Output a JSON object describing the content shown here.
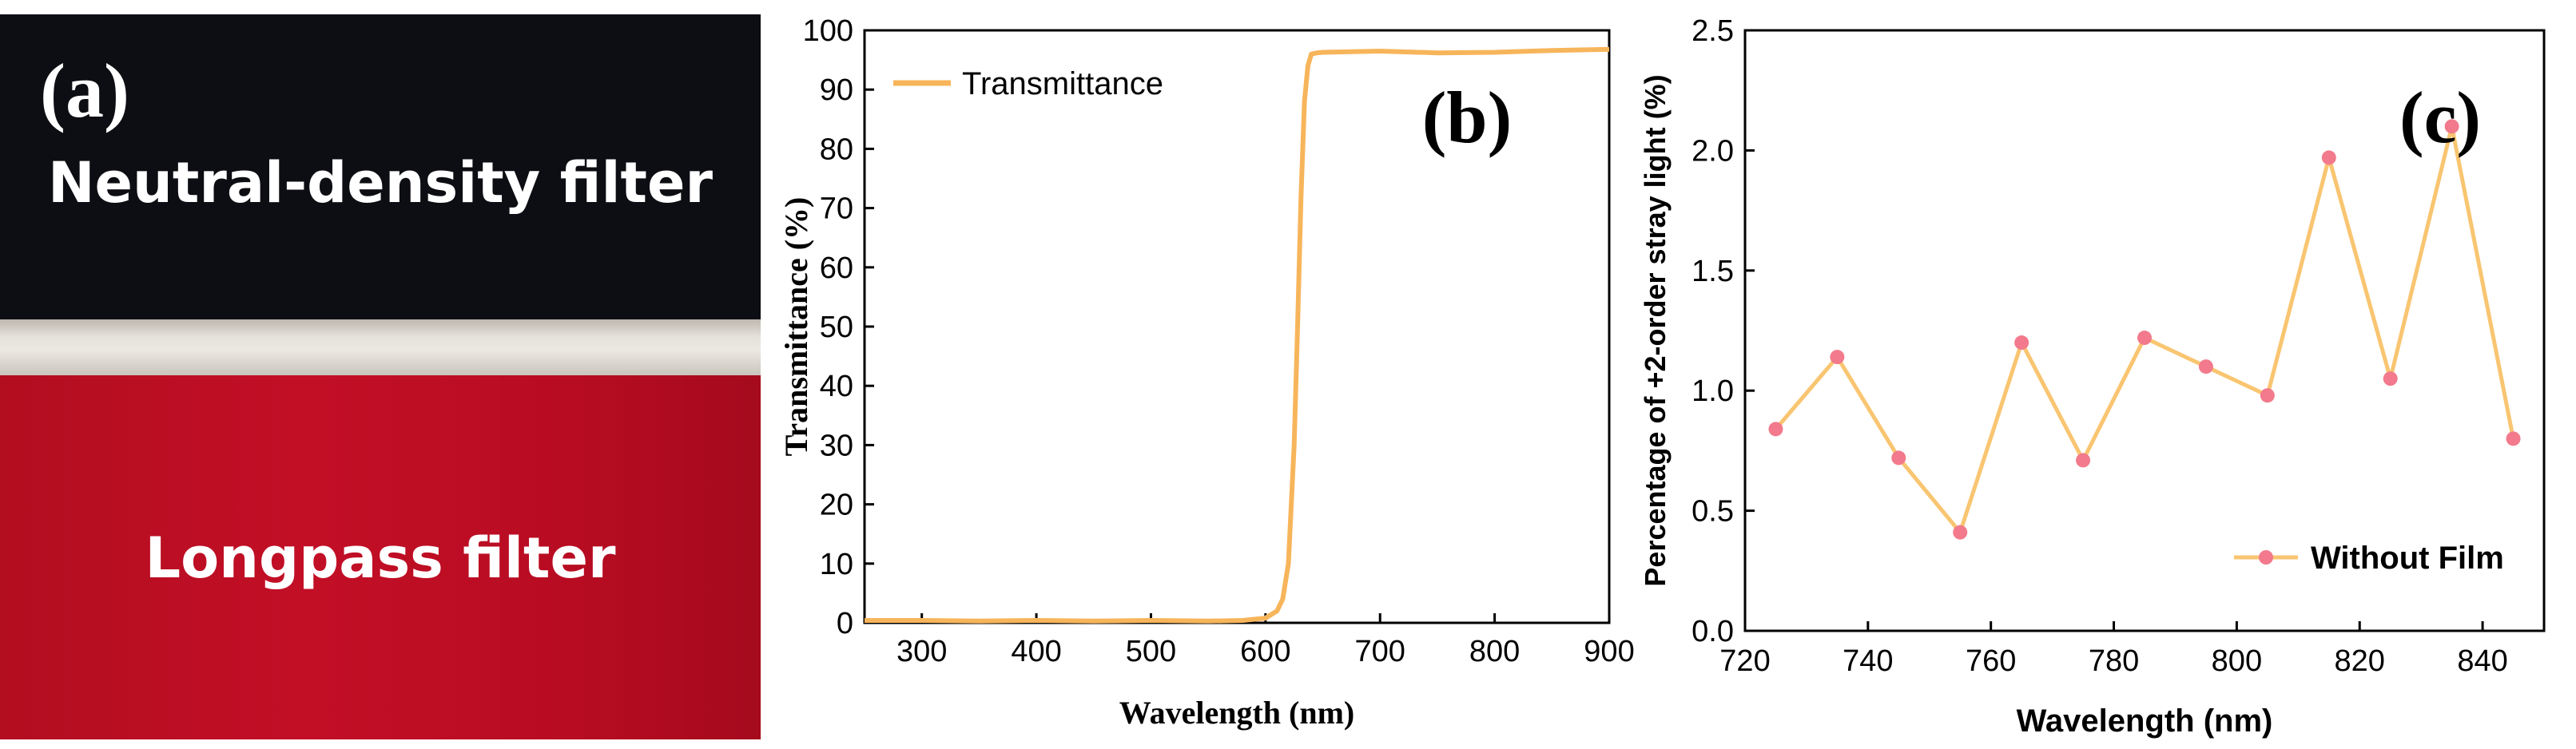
{
  "panel_a": {
    "tag": "(a)",
    "top_label": "Neutral-density filter",
    "bottom_label": "Longpass filter"
  },
  "chart_data": [
    {
      "type": "line",
      "panel_tag": "(b)",
      "xlabel": "Wavelength (nm)",
      "ylabel": "Transmittance (%)",
      "xlim": [
        250,
        900
      ],
      "ylim": [
        0,
        100
      ],
      "xticks": [
        300,
        400,
        500,
        600,
        700,
        800,
        900
      ],
      "yticks": [
        0,
        10,
        20,
        30,
        40,
        50,
        60,
        70,
        80,
        90,
        100
      ],
      "legend": "top-left",
      "series": [
        {
          "name": "Transmittance",
          "color": "#f7b55b",
          "x": [
            250,
            300,
            350,
            400,
            450,
            500,
            550,
            580,
            600,
            610,
            615,
            620,
            625,
            628,
            631,
            634,
            637,
            640,
            645,
            650,
            700,
            750,
            800,
            850,
            900
          ],
          "y": [
            0.4,
            0.4,
            0.3,
            0.4,
            0.3,
            0.4,
            0.3,
            0.4,
            0.8,
            2,
            4,
            10,
            30,
            50,
            72,
            88,
            94,
            96,
            96.2,
            96.3,
            96.5,
            96.2,
            96.3,
            96.6,
            96.8
          ]
        }
      ]
    },
    {
      "type": "line",
      "panel_tag": "(c)",
      "xlabel": "Wavelength (nm)",
      "ylabel": "Percentage of +2-order stray light (%)",
      "xlim": [
        720,
        850
      ],
      "ylim": [
        0,
        2.5
      ],
      "xticks": [
        720,
        740,
        760,
        780,
        800,
        820,
        840
      ],
      "yticks": [
        0.0,
        0.5,
        1.0,
        1.5,
        2.0,
        2.5
      ],
      "ytick_labels": [
        "0.0",
        "0.5",
        "1.0",
        "1.5",
        "2.0",
        "2.5"
      ],
      "legend": "bottom-right",
      "series": [
        {
          "name": "Without Film",
          "line_color": "#f9c571",
          "marker_color": "#f27a8c",
          "x": [
            725,
            735,
            745,
            755,
            765,
            775,
            785,
            795,
            805,
            815,
            825,
            835,
            845
          ],
          "y": [
            0.84,
            1.14,
            0.72,
            0.41,
            1.2,
            0.71,
            1.22,
            1.1,
            0.98,
            1.97,
            1.05,
            2.1,
            0.8
          ]
        }
      ]
    }
  ]
}
